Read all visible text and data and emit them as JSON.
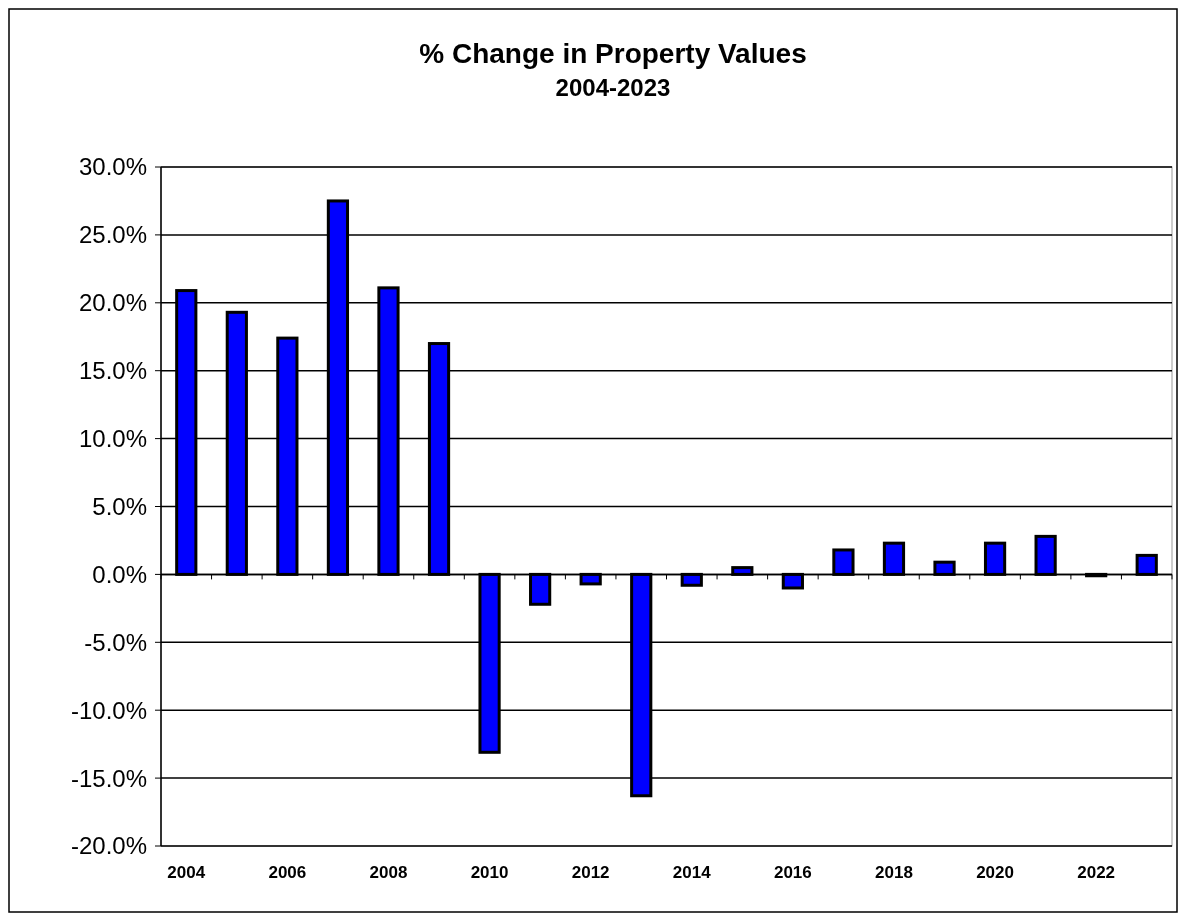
{
  "chart_data": {
    "type": "bar",
    "title": "% Change in Property Values",
    "subtitle": "2004-2023",
    "categories": [
      "2004",
      null,
      "2006",
      null,
      "2008",
      null,
      "2010",
      null,
      "2012",
      null,
      "2014",
      null,
      "2016",
      null,
      "2018",
      null,
      "2020",
      null,
      "2022",
      null
    ],
    "values": [
      20.9,
      19.3,
      17.4,
      27.5,
      21.1,
      17.0,
      -13.1,
      -2.2,
      -0.7,
      -16.3,
      -0.8,
      0.5,
      -1.0,
      1.8,
      2.3,
      0.9,
      2.3,
      2.8,
      -0.1,
      1.4
    ],
    "color": "#0000ff",
    "ylim": [
      -20,
      30
    ],
    "yticks": [
      {
        "value": -20,
        "label": "-20.0%"
      },
      {
        "value": -15,
        "label": "-15.0%"
      },
      {
        "value": -10,
        "label": "-10.0%"
      },
      {
        "value": -5,
        "label": "-5.0%"
      },
      {
        "value": 0,
        "label": "0.0%"
      },
      {
        "value": 5,
        "label": "5.0%"
      },
      {
        "value": 10,
        "label": "10.0%"
      },
      {
        "value": 15,
        "label": "15.0%"
      },
      {
        "value": 20,
        "label": "20.0%"
      },
      {
        "value": 25,
        "label": "25.0%"
      },
      {
        "value": 30,
        "label": "30.0%"
      }
    ],
    "grid": "y"
  }
}
